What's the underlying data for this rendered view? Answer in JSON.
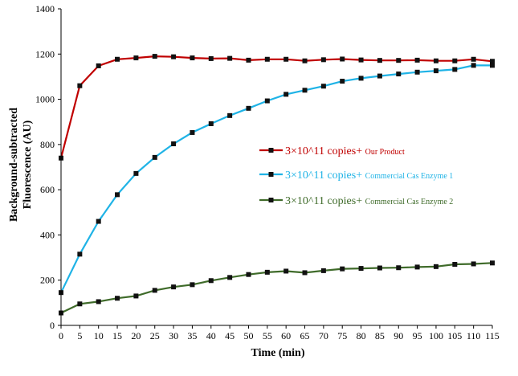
{
  "chart_data": {
    "type": "line",
    "xlabel": "Time (min)",
    "ylabel_lines": [
      "Background-subtracted",
      "Fluorescence (AU)"
    ],
    "xlim": [
      0,
      115
    ],
    "ylim": [
      0,
      1400
    ],
    "x_ticks": [
      0,
      5,
      10,
      15,
      20,
      25,
      30,
      35,
      40,
      45,
      50,
      55,
      60,
      65,
      70,
      75,
      80,
      85,
      90,
      95,
      100,
      105,
      110,
      115
    ],
    "y_ticks": [
      0,
      200,
      400,
      600,
      800,
      1000,
      1200,
      1400
    ],
    "grid": false,
    "legend_position": "center-right",
    "x": [
      0,
      5,
      10,
      15,
      20,
      25,
      30,
      35,
      40,
      45,
      50,
      55,
      60,
      65,
      70,
      75,
      80,
      85,
      90,
      95,
      100,
      105,
      110,
      115
    ],
    "series": [
      {
        "name_main": "3×10^11  copies+",
        "name_sub": "Our Product",
        "color": "#c00000",
        "values": [
          740,
          1060,
          1148,
          1177,
          1183,
          1190,
          1188,
          1183,
          1180,
          1181,
          1173,
          1177,
          1177,
          1170,
          1175,
          1178,
          1174,
          1172,
          1172,
          1173,
          1170,
          1170,
          1177,
          1168
        ]
      },
      {
        "name_main": "3×10^11  copies+",
        "name_sub": "Commercial Cas Enzyme 1",
        "color": "#1fb3e6",
        "values": [
          145,
          315,
          460,
          578,
          672,
          743,
          803,
          853,
          892,
          928,
          960,
          993,
          1022,
          1040,
          1058,
          1080,
          1093,
          1103,
          1112,
          1120,
          1126,
          1132,
          1150,
          1150
        ]
      },
      {
        "name_main": "3×10^11  copies+",
        "name_sub": "Commercial Cas Enzyme 2",
        "color": "#3f6b2a",
        "values": [
          55,
          95,
          105,
          120,
          130,
          155,
          170,
          180,
          198,
          212,
          225,
          235,
          240,
          233,
          242,
          250,
          252,
          254,
          255,
          258,
          260,
          270,
          272,
          276
        ]
      }
    ]
  }
}
